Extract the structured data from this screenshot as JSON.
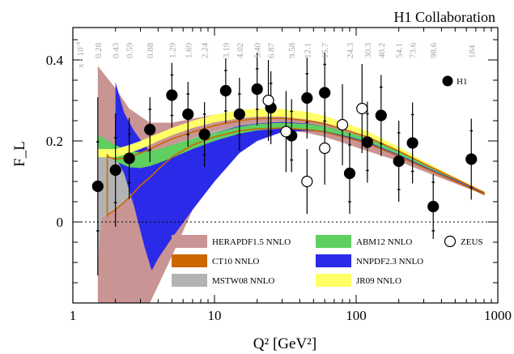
{
  "chart_data": {
    "type": "scatter",
    "title": "H1 Collaboration",
    "xlabel": "Q² [GeV²]",
    "ylabel": "F_L",
    "xscale": "log",
    "xlim": [
      1,
      1000
    ],
    "ylim": [
      -0.2,
      0.48
    ],
    "x_ticks": [
      1,
      10,
      100,
      1000
    ],
    "x_tick_labels": [
      "1",
      "10",
      "100",
      "1000"
    ],
    "y_ticks": [
      0,
      0.2,
      0.4
    ],
    "y_tick_labels": [
      "0",
      "0.2",
      "0.4"
    ],
    "zero_line": true,
    "grid": false,
    "legend_position": "bottom-center",
    "x_bjorken_prefix": "x · 10",
    "x_bjorken_exponent": "-4",
    "x_bjorken": [
      {
        "q2": 1.5,
        "label": "0.28"
      },
      {
        "q2": 2.0,
        "label": "0.43"
      },
      {
        "q2": 2.5,
        "label": "0.59"
      },
      {
        "q2": 3.5,
        "label": "0.88"
      },
      {
        "q2": 5.0,
        "label": "1.29"
      },
      {
        "q2": 6.5,
        "label": "1.69"
      },
      {
        "q2": 8.5,
        "label": "2.24"
      },
      {
        "q2": 12.0,
        "label": "3.19"
      },
      {
        "q2": 15.0,
        "label": "4.02"
      },
      {
        "q2": 20.0,
        "label": "5.40"
      },
      {
        "q2": 25.0,
        "label": "6.87"
      },
      {
        "q2": 35.0,
        "label": "9.58"
      },
      {
        "q2": 45.0,
        "label": "12.1"
      },
      {
        "q2": 60.0,
        "label": "15.7"
      },
      {
        "q2": 90.0,
        "label": "24.3"
      },
      {
        "q2": 120.0,
        "label": "30.3"
      },
      {
        "q2": 150.0,
        "label": "40.2"
      },
      {
        "q2": 200.0,
        "label": "54.1"
      },
      {
        "q2": 250.0,
        "label": "73.6"
      },
      {
        "q2": 350.0,
        "label": "98.6"
      },
      {
        "q2": 650.0,
        "label": "184"
      }
    ],
    "series": [
      {
        "name": "H1",
        "marker": "filled-circle",
        "color": "#000000",
        "points": [
          {
            "x": 1.5,
            "y": 0.088,
            "err_stat": 0.11,
            "err_tot": 0.22
          },
          {
            "x": 2.0,
            "y": 0.128,
            "err_stat": 0.08,
            "err_tot": 0.14
          },
          {
            "x": 2.5,
            "y": 0.157,
            "err_stat": 0.06,
            "err_tot": 0.1
          },
          {
            "x": 3.5,
            "y": 0.228,
            "err_stat": 0.05,
            "err_tot": 0.08
          },
          {
            "x": 5.0,
            "y": 0.313,
            "err_stat": 0.05,
            "err_tot": 0.08
          },
          {
            "x": 6.5,
            "y": 0.266,
            "err_stat": 0.05,
            "err_tot": 0.08
          },
          {
            "x": 8.5,
            "y": 0.216,
            "err_stat": 0.05,
            "err_tot": 0.08
          },
          {
            "x": 12.0,
            "y": 0.324,
            "err_stat": 0.05,
            "err_tot": 0.08
          },
          {
            "x": 15.0,
            "y": 0.266,
            "err_stat": 0.05,
            "err_tot": 0.09
          },
          {
            "x": 20.0,
            "y": 0.328,
            "err_stat": 0.05,
            "err_tot": 0.09
          },
          {
            "x": 25.0,
            "y": 0.282,
            "err_stat": 0.06,
            "err_tot": 0.09
          },
          {
            "x": 35.0,
            "y": 0.213,
            "err_stat": 0.06,
            "err_tot": 0.09
          },
          {
            "x": 45.0,
            "y": 0.306,
            "err_stat": 0.06,
            "err_tot": 0.1
          },
          {
            "x": 60.0,
            "y": 0.319,
            "err_stat": 0.07,
            "err_tot": 0.1
          },
          {
            "x": 90.0,
            "y": 0.12,
            "err_stat": 0.07,
            "err_tot": 0.1
          },
          {
            "x": 120.0,
            "y": 0.197,
            "err_stat": 0.07,
            "err_tot": 0.1
          },
          {
            "x": 150.0,
            "y": 0.263,
            "err_stat": 0.07,
            "err_tot": 0.1
          },
          {
            "x": 200.0,
            "y": 0.15,
            "err_stat": 0.07,
            "err_tot": 0.1
          },
          {
            "x": 250.0,
            "y": 0.195,
            "err_stat": 0.07,
            "err_tot": 0.1
          },
          {
            "x": 350.0,
            "y": 0.038,
            "err_stat": 0.06,
            "err_tot": 0.08
          },
          {
            "x": 650.0,
            "y": 0.155,
            "err_stat": 0.07,
            "err_tot": 0.1
          }
        ]
      },
      {
        "name": "ZEUS",
        "marker": "open-circle",
        "color": "#000000",
        "points": [
          {
            "x": 24.0,
            "y": 0.3,
            "err_tot": 0.1
          },
          {
            "x": 32.0,
            "y": 0.223,
            "err_tot": 0.1
          },
          {
            "x": 45.0,
            "y": 0.1,
            "err_tot": 0.08
          },
          {
            "x": 60.0,
            "y": 0.182,
            "err_tot": 0.09
          },
          {
            "x": 80.0,
            "y": 0.24,
            "err_tot": 0.1
          },
          {
            "x": 110.0,
            "y": 0.28,
            "err_tot": 0.11
          }
        ]
      }
    ],
    "bands": [
      {
        "name": "HERAPDF1.5 NNLO",
        "color": "#c99494",
        "x": [
          1.5,
          2,
          2.5,
          3.5,
          5,
          7,
          10,
          15,
          20,
          25,
          30,
          45,
          60,
          90,
          120,
          200,
          300,
          500,
          800
        ],
        "upper": [
          0.385,
          0.33,
          0.28,
          0.245,
          0.245,
          0.255,
          0.265,
          0.275,
          0.278,
          0.278,
          0.276,
          0.27,
          0.262,
          0.24,
          0.22,
          0.185,
          0.15,
          0.11,
          0.075
        ],
        "lower": [
          -0.2,
          -0.2,
          -0.2,
          -0.2,
          -0.085,
          0.03,
          0.135,
          0.2,
          0.222,
          0.228,
          0.228,
          0.22,
          0.21,
          0.19,
          0.175,
          0.15,
          0.125,
          0.095,
          0.068
        ]
      },
      {
        "name": "MSTW08 NNLO",
        "color": "#b3b3b3",
        "x": [
          1.5,
          1.6,
          1.8,
          2,
          2.5,
          3,
          3.5,
          4,
          5,
          6,
          8,
          10,
          15,
          20,
          30,
          45,
          60,
          90,
          120,
          200,
          300,
          500,
          800
        ],
        "upper": [
          0.205,
          0.18,
          0.16,
          0.16,
          0.165,
          0.17,
          0.175,
          0.18,
          0.19,
          0.2,
          0.215,
          0.225,
          0.238,
          0.244,
          0.246,
          0.242,
          0.236,
          0.218,
          0.205,
          0.17,
          0.14,
          0.105,
          0.072
        ],
        "lower": [
          -0.1,
          0.01,
          0.02,
          0.03,
          0.06,
          0.09,
          0.11,
          0.13,
          0.16,
          0.18,
          0.2,
          0.21,
          0.225,
          0.232,
          0.236,
          0.232,
          0.226,
          0.21,
          0.197,
          0.165,
          0.136,
          0.102,
          0.07
        ]
      },
      {
        "name": "NNPDF2.3 NNLO",
        "color": "#2a2ae8",
        "x": [
          2,
          2.3,
          2.7,
          3.2,
          3.6,
          4,
          5,
          7,
          10,
          15,
          20,
          30,
          45,
          60,
          90,
          120,
          200,
          300,
          500,
          800
        ],
        "upper": [
          0.345,
          0.27,
          0.225,
          0.19,
          0.17,
          0.175,
          0.185,
          0.2,
          0.22,
          0.237,
          0.243,
          0.247,
          0.243,
          0.236,
          0.22,
          0.206,
          0.172,
          0.142,
          0.107,
          0.073
        ],
        "lower": [
          0.16,
          0.12,
          0.04,
          -0.06,
          -0.12,
          -0.09,
          -0.04,
          0.03,
          0.1,
          0.17,
          0.2,
          0.222,
          0.225,
          0.222,
          0.208,
          0.196,
          0.164,
          0.136,
          0.102,
          0.069
        ]
      },
      {
        "name": "ABM12 NNLO",
        "color": "#5fcf5f",
        "x": [
          1.5,
          2,
          2.5,
          3,
          3.5,
          4,
          5,
          7,
          10,
          15,
          20,
          30,
          45,
          60,
          90,
          120,
          200,
          300,
          500,
          800
        ],
        "upper": [
          0.215,
          0.19,
          0.175,
          0.172,
          0.175,
          0.18,
          0.19,
          0.205,
          0.22,
          0.235,
          0.242,
          0.245,
          0.242,
          0.236,
          0.22,
          0.207,
          0.173,
          0.143,
          0.108,
          0.074
        ],
        "lower": [
          0.185,
          0.15,
          0.135,
          0.133,
          0.138,
          0.145,
          0.158,
          0.18,
          0.2,
          0.218,
          0.226,
          0.231,
          0.229,
          0.224,
          0.21,
          0.198,
          0.166,
          0.138,
          0.104,
          0.071
        ]
      },
      {
        "name": "JR09 NNLO",
        "color": "#ffff66",
        "x": [
          1.5,
          2,
          2.5,
          3,
          3.5,
          4,
          5,
          7,
          10,
          15,
          20,
          30,
          45,
          60,
          90,
          120,
          200,
          300,
          500,
          800
        ],
        "upper": [
          0.18,
          0.18,
          0.19,
          0.2,
          0.21,
          0.218,
          0.232,
          0.25,
          0.265,
          0.276,
          0.28,
          0.279,
          0.272,
          0.262,
          0.24,
          0.224,
          0.185,
          0.15,
          0.11,
          0.075
        ],
        "lower": [
          0.16,
          0.16,
          0.17,
          0.18,
          0.19,
          0.2,
          0.214,
          0.232,
          0.246,
          0.256,
          0.26,
          0.26,
          0.253,
          0.245,
          0.226,
          0.211,
          0.175,
          0.143,
          0.106,
          0.072
        ]
      },
      {
        "name": "CT10 NNLO",
        "color": "#cc6600",
        "style": "outline",
        "x": [
          1.75,
          1.8,
          2,
          2.5,
          3,
          3.5,
          4,
          5,
          7,
          10,
          15,
          20,
          30,
          45,
          60,
          90,
          120,
          200,
          300,
          500,
          800
        ],
        "upper": [
          0.165,
          0.16,
          0.155,
          0.16,
          0.17,
          0.18,
          0.19,
          0.205,
          0.222,
          0.238,
          0.25,
          0.255,
          0.256,
          0.25,
          0.242,
          0.224,
          0.21,
          0.175,
          0.144,
          0.107,
          0.073
        ],
        "lower": [
          0.015,
          0.02,
          0.03,
          0.06,
          0.09,
          0.11,
          0.13,
          0.16,
          0.19,
          0.21,
          0.225,
          0.23,
          0.232,
          0.228,
          0.222,
          0.206,
          0.194,
          0.162,
          0.134,
          0.1,
          0.068
        ]
      }
    ]
  }
}
